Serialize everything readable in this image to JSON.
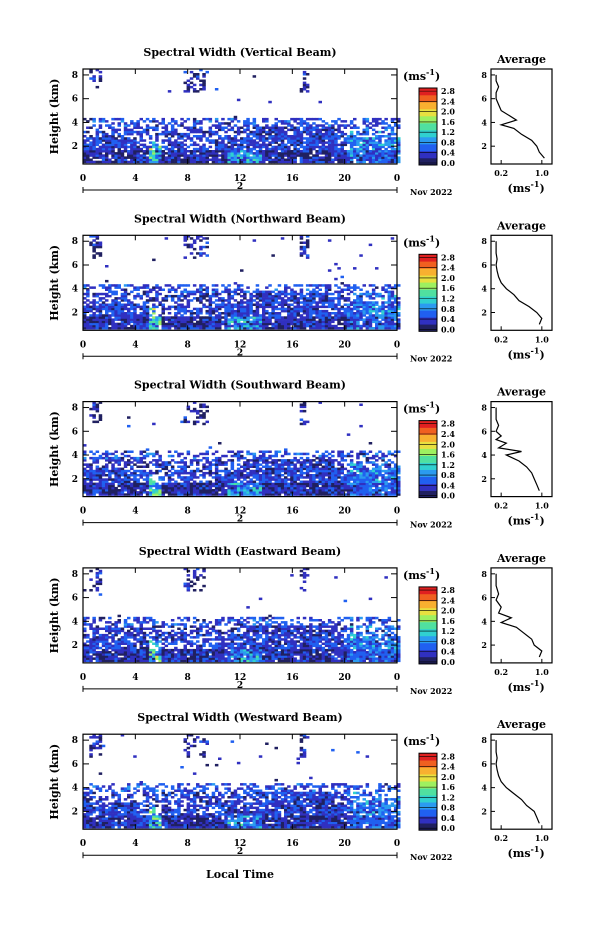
{
  "chart_data": {
    "type": "heatmap",
    "x_label": "Local Time",
    "x_ticks": [
      "0",
      "4",
      "8",
      "12",
      "16",
      "20",
      "0"
    ],
    "x_range": [
      0,
      24
    ],
    "date_marker": "2",
    "month_year": "Nov 2022",
    "y_label": "Height (km)",
    "y_ticks": [
      "2",
      "4",
      "6",
      "8"
    ],
    "y_range": [
      0.5,
      8.5
    ],
    "colorbar": {
      "unit": "(ms",
      "unit_exp": "-1",
      "unit_close": ")",
      "ticks": [
        "0.0",
        "0.4",
        "0.8",
        "1.2",
        "1.6",
        "2.0",
        "2.4",
        "2.8"
      ],
      "range": [
        0,
        3.0
      ],
      "colors": [
        "#202060",
        "#3030c0",
        "#2060f0",
        "#2b9bf0",
        "#30d0d0",
        "#50e0a0",
        "#9ef060",
        "#e8e040",
        "#f8b030",
        "#f06020",
        "#e02020"
      ]
    },
    "average_panel": {
      "title": "Average",
      "x_ticks": [
        "0.2",
        "1.0"
      ],
      "x_range": [
        0,
        1.2
      ],
      "y_ticks": [
        "2",
        "4",
        "6",
        "8"
      ],
      "unit": "(ms",
      "unit_exp": "-1",
      "unit_close": ")"
    },
    "panels": [
      {
        "title": "Spectral Width (Vertical Beam)",
        "profile": [
          [
            1.0,
            1.05
          ],
          [
            1.5,
            0.95
          ],
          [
            2.0,
            0.9
          ],
          [
            2.5,
            0.8
          ],
          [
            3.0,
            0.6
          ],
          [
            3.5,
            0.45
          ],
          [
            3.8,
            0.2
          ],
          [
            4.2,
            0.5
          ],
          [
            4.6,
            0.35
          ],
          [
            5.0,
            0.2
          ],
          [
            5.5,
            0.15
          ],
          [
            6.0,
            0.1
          ],
          [
            6.5,
            0.1
          ],
          [
            7.0,
            0.15
          ],
          [
            7.5,
            0.1
          ],
          [
            8.0,
            0.1
          ]
        ]
      },
      {
        "title": "Spectral Width (Northward Beam)",
        "profile": [
          [
            1.0,
            0.95
          ],
          [
            1.5,
            1.0
          ],
          [
            2.0,
            0.9
          ],
          [
            2.5,
            0.75
          ],
          [
            3.0,
            0.55
          ],
          [
            3.5,
            0.45
          ],
          [
            4.0,
            0.3
          ],
          [
            4.5,
            0.2
          ],
          [
            5.0,
            0.15
          ],
          [
            5.5,
            0.12
          ],
          [
            6.0,
            0.1
          ],
          [
            6.5,
            0.12
          ],
          [
            7.0,
            0.1
          ],
          [
            8.0,
            0.1
          ]
        ]
      },
      {
        "title": "Spectral Width (Southward Beam)",
        "profile": [
          [
            1.0,
            0.95
          ],
          [
            1.5,
            0.9
          ],
          [
            2.0,
            0.85
          ],
          [
            2.5,
            0.8
          ],
          [
            3.0,
            0.7
          ],
          [
            3.5,
            0.55
          ],
          [
            4.0,
            0.3
          ],
          [
            4.3,
            0.6
          ],
          [
            4.6,
            0.15
          ],
          [
            5.0,
            0.3
          ],
          [
            5.3,
            0.1
          ],
          [
            5.6,
            0.2
          ],
          [
            6.0,
            0.1
          ],
          [
            6.5,
            0.15
          ],
          [
            7.0,
            0.1
          ],
          [
            8.0,
            0.1
          ]
        ]
      },
      {
        "title": "Spectral Width (Eastward Beam)",
        "profile": [
          [
            1.0,
            0.95
          ],
          [
            1.5,
            1.0
          ],
          [
            2.0,
            0.85
          ],
          [
            2.5,
            0.8
          ],
          [
            3.0,
            0.65
          ],
          [
            3.5,
            0.5
          ],
          [
            3.9,
            0.2
          ],
          [
            4.3,
            0.4
          ],
          [
            4.7,
            0.15
          ],
          [
            5.2,
            0.2
          ],
          [
            5.8,
            0.1
          ],
          [
            6.3,
            0.15
          ],
          [
            7.0,
            0.1
          ],
          [
            8.0,
            0.1
          ]
        ]
      },
      {
        "title": "Spectral Width (Westward Beam)",
        "profile": [
          [
            1.0,
            0.95
          ],
          [
            1.5,
            0.9
          ],
          [
            2.0,
            0.85
          ],
          [
            2.5,
            0.7
          ],
          [
            3.0,
            0.6
          ],
          [
            3.5,
            0.45
          ],
          [
            4.0,
            0.3
          ],
          [
            4.5,
            0.2
          ],
          [
            5.0,
            0.15
          ],
          [
            5.5,
            0.12
          ],
          [
            6.0,
            0.1
          ],
          [
            6.5,
            0.12
          ],
          [
            7.0,
            0.1
          ],
          [
            8.0,
            0.1
          ]
        ]
      }
    ]
  }
}
